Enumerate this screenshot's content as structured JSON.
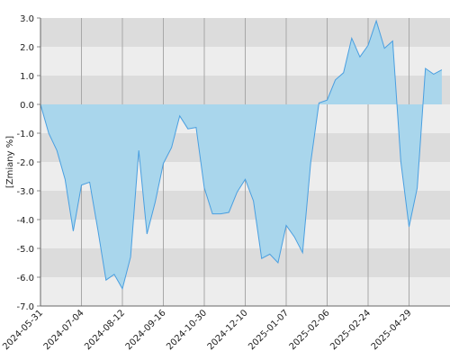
{
  "chart_data": {
    "type": "area",
    "y_label": "[Zmiany %]",
    "categories": [
      "2024-05-31",
      null,
      null,
      null,
      null,
      "2024-07-04",
      null,
      null,
      null,
      null,
      "2024-08-12",
      null,
      null,
      null,
      null,
      "2024-09-16",
      null,
      null,
      null,
      null,
      "2024-10-30",
      null,
      null,
      null,
      null,
      "2024-12-10",
      null,
      null,
      null,
      null,
      "2025-01-07",
      null,
      null,
      null,
      null,
      "2025-02-06",
      null,
      null,
      null,
      null,
      "2025-02-24",
      null,
      null,
      null,
      null,
      "2025-04-29",
      null,
      null,
      null,
      null
    ],
    "series": [
      {
        "name": "Zmiany",
        "color": "#4a9fe0",
        "fill": "#a9d6ec",
        "values": [
          0,
          -1.0,
          -1.6,
          -2.6,
          -4.4,
          -2.8,
          -2.7,
          -4.35,
          -6.1,
          -5.9,
          -6.4,
          -5.3,
          -1.6,
          -4.5,
          -3.4,
          -2.05,
          -1.5,
          -0.4,
          -0.85,
          -0.8,
          -2.9,
          -3.8,
          -3.8,
          -3.75,
          -3.05,
          -2.6,
          -3.35,
          -5.35,
          -5.2,
          -5.5,
          -4.2,
          -4.6,
          -5.15,
          -2.0,
          0.05,
          0.15,
          0.85,
          1.1,
          2.3,
          1.65,
          2.05,
          2.9,
          1.95,
          2.2,
          -2.0,
          -4.25,
          -2.9,
          1.25,
          1.05,
          1.2
        ]
      }
    ],
    "ylim": [
      -7,
      3
    ],
    "yticks": [
      {
        "value": -7,
        "label": "-7.0"
      },
      {
        "value": -6,
        "label": "-6.0"
      },
      {
        "value": -5,
        "label": "-5.0"
      },
      {
        "value": -4,
        "label": "-4.0"
      },
      {
        "value": -3,
        "label": "-3.0"
      },
      {
        "value": -2,
        "label": "-2.0"
      },
      {
        "value": -1,
        "label": "-1.0"
      },
      {
        "value": 0,
        "label": "0.0"
      },
      {
        "value": 1,
        "label": "1.0"
      },
      {
        "value": 2,
        "label": "2.0"
      },
      {
        "value": 3,
        "label": "3.0"
      }
    ],
    "band_colors": [
      "#dcdcdc",
      "#ededed"
    ],
    "grid": true
  }
}
